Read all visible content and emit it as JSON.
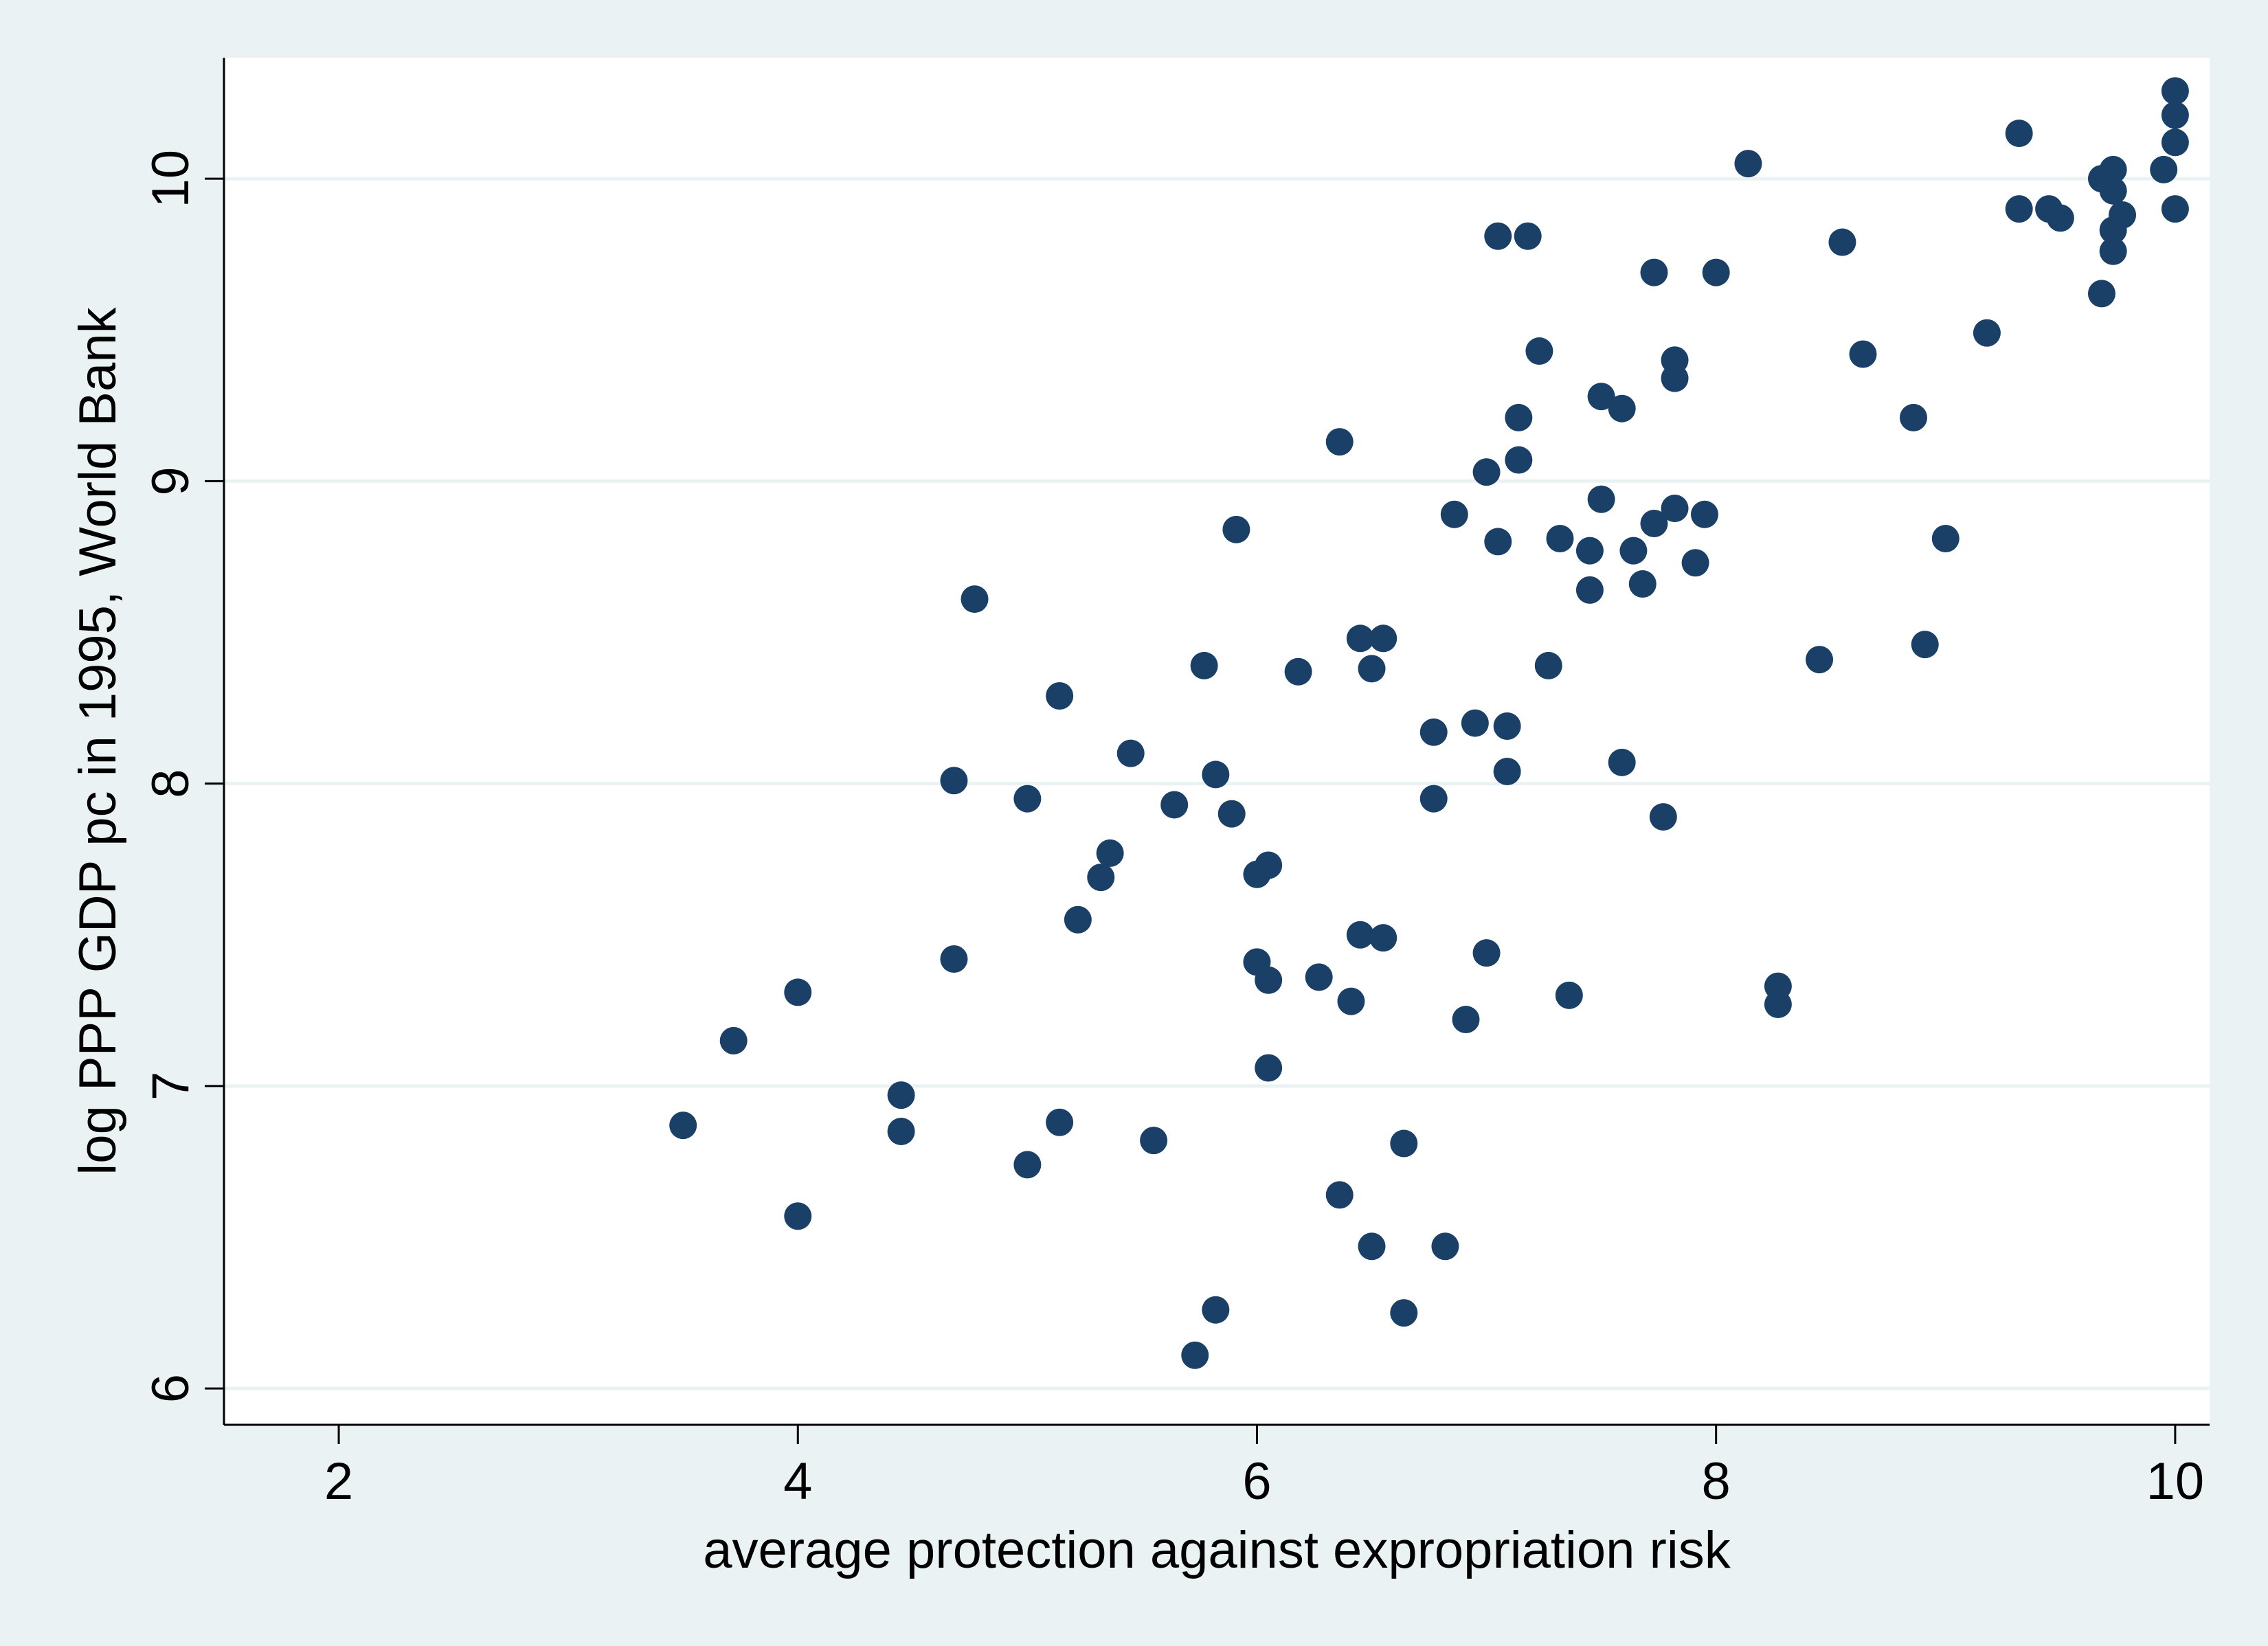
{
  "chart_data": {
    "type": "scatter",
    "title": "",
    "xlabel": "average protection against expropriation risk",
    "ylabel": "log PPP GDP pc in 1995, World Bank",
    "xlim": [
      1.5,
      10.15
    ],
    "ylim": [
      5.88,
      10.4
    ],
    "x_ticks": [
      2,
      4,
      6,
      8,
      10
    ],
    "y_ticks": [
      6,
      7,
      8,
      9,
      10
    ],
    "grid": "horizontal",
    "legend": "none",
    "colors": {
      "marker": "#1a4068",
      "gridline": "#eaf2f3",
      "plot_bg": "#ffffff",
      "page_bg": "#eaf2f3"
    },
    "points": [
      [
        3.5,
        6.87
      ],
      [
        3.72,
        7.15
      ],
      [
        4.0,
        7.31
      ],
      [
        4.0,
        6.57
      ],
      [
        4.45,
        6.97
      ],
      [
        4.45,
        6.85
      ],
      [
        4.68,
        7.42
      ],
      [
        4.68,
        8.01
      ],
      [
        4.77,
        8.61
      ],
      [
        5.0,
        7.95
      ],
      [
        5.0,
        6.74
      ],
      [
        5.14,
        6.88
      ],
      [
        5.14,
        8.29
      ],
      [
        5.22,
        7.55
      ],
      [
        5.32,
        7.69
      ],
      [
        5.36,
        7.77
      ],
      [
        5.45,
        8.1
      ],
      [
        5.55,
        6.82
      ],
      [
        5.64,
        7.93
      ],
      [
        5.73,
        6.11
      ],
      [
        5.77,
        8.39
      ],
      [
        5.82,
        8.03
      ],
      [
        5.82,
        6.26
      ],
      [
        5.89,
        7.9
      ],
      [
        5.91,
        8.84
      ],
      [
        6.0,
        7.7
      ],
      [
        6.0,
        7.41
      ],
      [
        6.05,
        7.35
      ],
      [
        6.05,
        7.73
      ],
      [
        6.05,
        7.06
      ],
      [
        6.18,
        8.37
      ],
      [
        6.27,
        7.36
      ],
      [
        6.36,
        6.64
      ],
      [
        6.36,
        9.13
      ],
      [
        6.41,
        7.28
      ],
      [
        6.45,
        8.48
      ],
      [
        6.45,
        7.5
      ],
      [
        6.5,
        8.38
      ],
      [
        6.5,
        6.47
      ],
      [
        6.55,
        8.48
      ],
      [
        6.55,
        7.49
      ],
      [
        6.64,
        6.81
      ],
      [
        6.64,
        6.25
      ],
      [
        6.77,
        8.17
      ],
      [
        6.77,
        7.95
      ],
      [
        6.82,
        6.47
      ],
      [
        6.86,
        8.89
      ],
      [
        6.91,
        7.22
      ],
      [
        6.95,
        8.2
      ],
      [
        7.0,
        9.03
      ],
      [
        7.0,
        7.44
      ],
      [
        7.05,
        8.8
      ],
      [
        7.05,
        9.81
      ],
      [
        7.09,
        8.19
      ],
      [
        7.09,
        8.04
      ],
      [
        7.14,
        9.21
      ],
      [
        7.14,
        9.07
      ],
      [
        7.18,
        9.81
      ],
      [
        7.23,
        9.43
      ],
      [
        7.27,
        8.39
      ],
      [
        7.32,
        8.81
      ],
      [
        7.36,
        7.3
      ],
      [
        7.45,
        8.77
      ],
      [
        7.45,
        8.64
      ],
      [
        7.5,
        8.94
      ],
      [
        7.5,
        9.28
      ],
      [
        7.59,
        9.24
      ],
      [
        7.59,
        8.07
      ],
      [
        7.64,
        8.77
      ],
      [
        7.68,
        8.66
      ],
      [
        7.73,
        8.86
      ],
      [
        7.73,
        9.69
      ],
      [
        7.77,
        7.89
      ],
      [
        7.82,
        9.34
      ],
      [
        7.82,
        9.4
      ],
      [
        7.82,
        8.91
      ],
      [
        7.91,
        8.73
      ],
      [
        7.95,
        8.89
      ],
      [
        8.0,
        9.69
      ],
      [
        8.14,
        10.05
      ],
      [
        8.27,
        7.33
      ],
      [
        8.27,
        7.27
      ],
      [
        8.45,
        8.41
      ],
      [
        8.55,
        9.79
      ],
      [
        8.64,
        9.42
      ],
      [
        8.86,
        9.21
      ],
      [
        8.91,
        8.46
      ],
      [
        9.0,
        8.81
      ],
      [
        9.18,
        9.49
      ],
      [
        9.32,
        10.15
      ],
      [
        9.32,
        9.9
      ],
      [
        9.45,
        9.9
      ],
      [
        9.5,
        9.87
      ],
      [
        9.68,
        10.0
      ],
      [
        9.68,
        9.62
      ],
      [
        9.73,
        10.03
      ],
      [
        9.73,
        9.96
      ],
      [
        9.73,
        9.83
      ],
      [
        9.73,
        9.76
      ],
      [
        9.77,
        9.88
      ],
      [
        9.95,
        10.03
      ],
      [
        10.0,
        10.29
      ],
      [
        10.0,
        10.21
      ],
      [
        10.0,
        10.12
      ],
      [
        10.0,
        9.9
      ]
    ]
  }
}
